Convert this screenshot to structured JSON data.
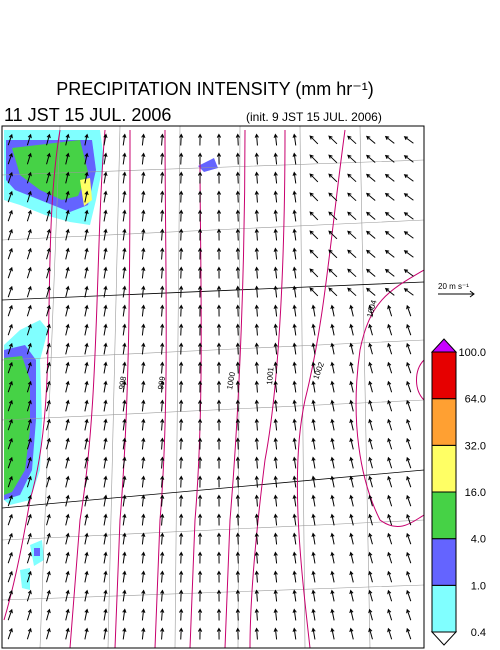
{
  "header": {
    "title": "PRECIPITATION INTENSITY (mm hr⁻¹)",
    "valid_time": "11 JST 15 JUL. 2006",
    "init_time": "(init. 9 JST 15 JUL. 2006)"
  },
  "wind_scale": "20 m s⁻¹",
  "contour_labels": [
    "998",
    "999",
    "1000",
    "1001",
    "1002",
    "1004"
  ],
  "colorbar": {
    "levels": [
      0.4,
      {
        "value": 1,
        "label": "1.0"
      },
      {
        "value": 4,
        "label": "4.0"
      },
      {
        "value": 16,
        "label": "16.0"
      },
      {
        "value": 32,
        "label": "32.0"
      },
      {
        "value": 64,
        "label": "64.0"
      },
      {
        "value": 100,
        "label": "100.0"
      }
    ],
    "colors": [
      "#ffffff",
      "#80ffff",
      "#6464ff",
      "#46d246",
      "#ffff64",
      "#ffa032",
      "#e60000",
      "#c800ff"
    ]
  }
}
